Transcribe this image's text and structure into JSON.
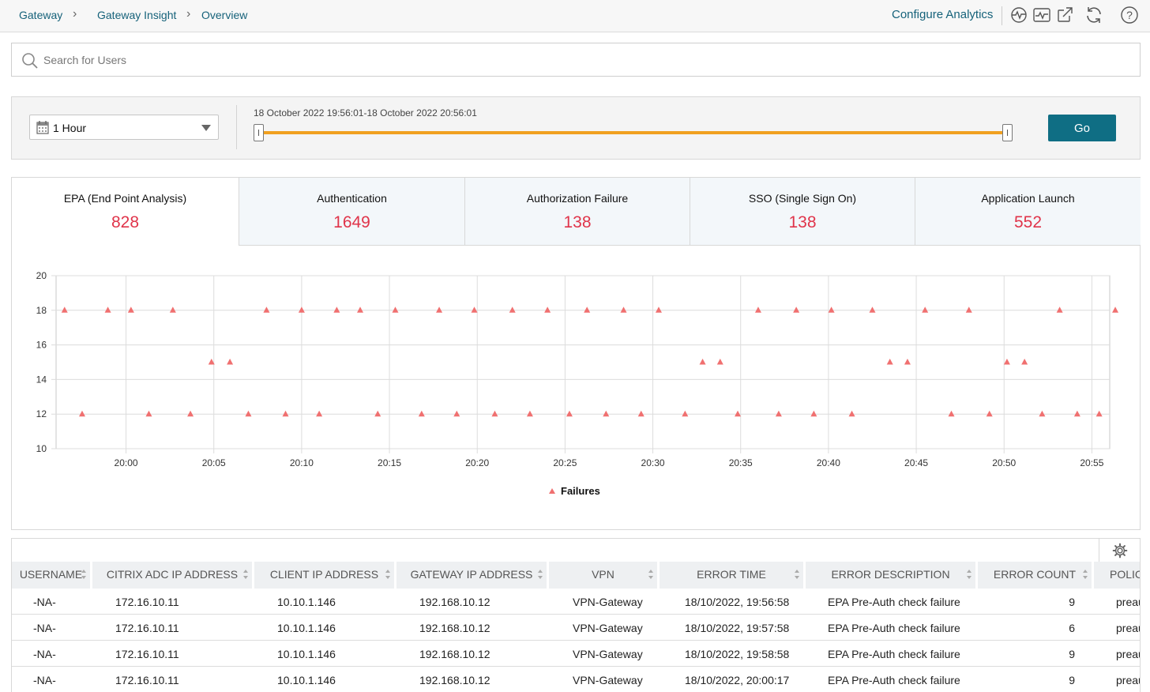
{
  "breadcrumb": [
    "Gateway",
    "Gateway Insight",
    "Overview"
  ],
  "toolbar": {
    "configure_label": "Configure Analytics",
    "icons": [
      "pulse-icon",
      "monitor-chart-icon",
      "external-link-icon",
      "refresh-icon",
      "help-icon"
    ]
  },
  "search": {
    "placeholder": "Search for Users",
    "value": ""
  },
  "filter": {
    "range_label": "1 Hour",
    "range_text": "18 October 2022 19:56:01-18 October 2022 20:56:01",
    "go_label": "Go",
    "slider_start": 0,
    "slider_end": 1
  },
  "tabs": [
    {
      "label": "EPA (End Point Analysis)",
      "count": "828",
      "active": true
    },
    {
      "label": "Authentication",
      "count": "1649",
      "active": false
    },
    {
      "label": "Authorization Failure",
      "count": "138",
      "active": false
    },
    {
      "label": "SSO (Single Sign On)",
      "count": "138",
      "active": false
    },
    {
      "label": "Application Launch",
      "count": "552",
      "active": false
    }
  ],
  "chart_data": {
    "type": "scatter",
    "title": "",
    "xlabel": "",
    "ylabel": "",
    "ylim": [
      10,
      20
    ],
    "yticks": [
      "10",
      "12",
      "14",
      "16",
      "18",
      "20"
    ],
    "xlim": [
      "19:56:01",
      "20:56:01"
    ],
    "xticks": [
      "20:00",
      "20:05",
      "20:10",
      "20:15",
      "20:20",
      "20:25",
      "20:30",
      "20:35",
      "20:40",
      "20:45",
      "20:50",
      "20:55"
    ],
    "grid": true,
    "legend": "bottom",
    "marker_color": "#f07070",
    "series": [
      {
        "name": "Failures",
        "x": [
          "19:56:30",
          "19:57:30",
          "19:58:58",
          "20:00:17",
          "20:01:18",
          "20:02:40",
          "20:03:40",
          "20:04:52",
          "20:05:55",
          "20:06:58",
          "20:08:00",
          "20:09:05",
          "20:10:00",
          "20:11:00",
          "20:12:00",
          "20:13:20",
          "20:14:20",
          "20:15:20",
          "20:16:50",
          "20:17:50",
          "20:18:50",
          "20:19:50",
          "20:21:00",
          "20:22:00",
          "20:23:00",
          "20:24:00",
          "20:25:15",
          "20:26:15",
          "20:27:20",
          "20:28:20",
          "20:29:20",
          "20:30:20",
          "20:31:50",
          "20:32:50",
          "20:33:50",
          "20:34:50",
          "20:36:00",
          "20:37:10",
          "20:38:10",
          "20:39:10",
          "20:40:10",
          "20:41:20",
          "20:42:30",
          "20:43:30",
          "20:44:30",
          "20:45:30",
          "20:47:00",
          "20:48:00",
          "20:49:10",
          "20:50:10",
          "20:51:10",
          "20:52:10",
          "20:53:10",
          "20:54:10",
          "20:55:25",
          "20:56:20"
        ],
        "y": [
          18,
          12,
          18,
          18,
          12,
          18,
          12,
          15,
          15,
          12,
          18,
          12,
          18,
          12,
          18,
          18,
          12,
          18,
          12,
          18,
          12,
          18,
          12,
          18,
          12,
          18,
          12,
          18,
          12,
          18,
          12,
          18,
          12,
          15,
          15,
          12,
          18,
          12,
          18,
          12,
          18,
          12,
          18,
          15,
          15,
          18,
          12,
          18,
          12,
          15,
          15,
          12,
          18,
          12,
          12,
          18
        ]
      }
    ]
  },
  "table": {
    "columns": [
      "USERNAME",
      "CITRIX ADC IP ADDRESS",
      "CLIENT IP ADDRESS",
      "GATEWAY IP ADDRESS",
      "VPN",
      "ERROR TIME",
      "ERROR DESCRIPTION",
      "ERROR COUNT",
      "POLIC"
    ],
    "rows": [
      [
        "-NA-",
        "172.16.10.11",
        "10.10.1.146",
        "192.168.10.12",
        "VPN-Gateway",
        "18/10/2022, 19:56:58",
        "EPA Pre-Auth check failure",
        "9",
        "preau"
      ],
      [
        "-NA-",
        "172.16.10.11",
        "10.10.1.146",
        "192.168.10.12",
        "VPN-Gateway",
        "18/10/2022, 19:57:58",
        "EPA Pre-Auth check failure",
        "6",
        "preau"
      ],
      [
        "-NA-",
        "172.16.10.11",
        "10.10.1.146",
        "192.168.10.12",
        "VPN-Gateway",
        "18/10/2022, 19:58:58",
        "EPA Pre-Auth check failure",
        "9",
        "preau"
      ],
      [
        "-NA-",
        "172.16.10.11",
        "10.10.1.146",
        "192.168.10.12",
        "VPN-Gateway",
        "18/10/2022, 20:00:17",
        "EPA Pre-Auth check failure",
        "9",
        "preau"
      ]
    ]
  }
}
